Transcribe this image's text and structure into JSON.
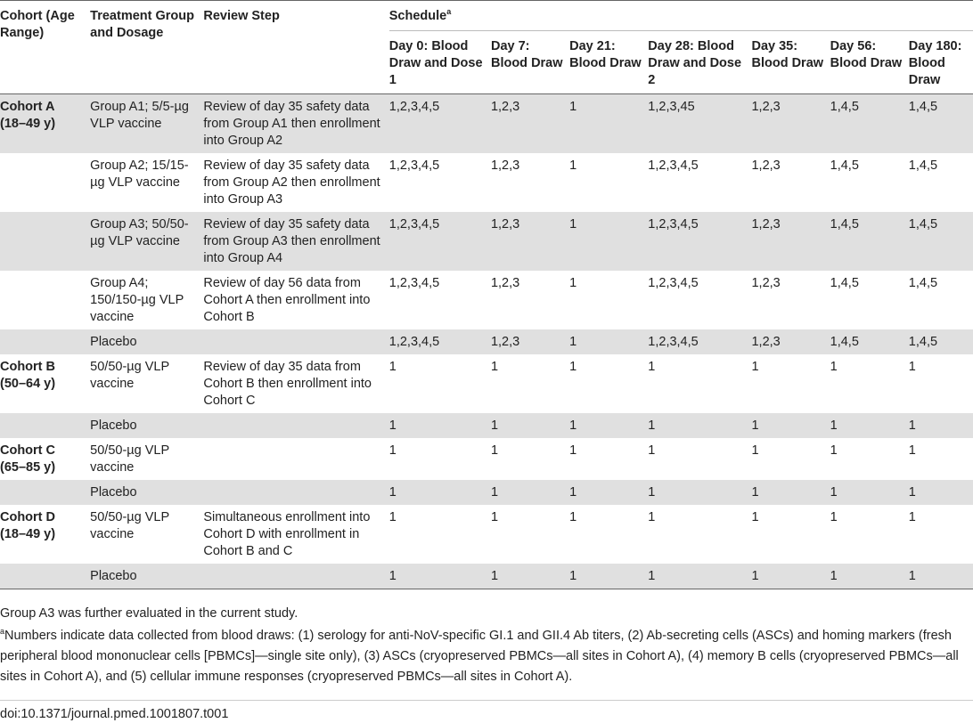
{
  "headers": {
    "cohort": "Cohort (Age Range)",
    "treatment": "Treatment Group and Dosage",
    "review": "Review Step",
    "schedule": "Schedule",
    "schedule_sup": "a",
    "days": [
      "Day 0: Blood Draw and Dose 1",
      "Day 7: Blood Draw",
      "Day 21: Blood Draw",
      "Day 28: Blood Draw and Dose 2",
      "Day 35: Blood Draw",
      "Day 56: Blood Draw",
      "Day 180: Blood Draw"
    ]
  },
  "rows": [
    {
      "cohort": "Cohort A (18–49 y)",
      "treatment": "Group A1; 5/5-µg VLP vaccine",
      "review": "Review of day 35 safety data from Group A1 then enrollment into Group A2",
      "values": [
        "1,2,3,4,5",
        "1,2,3",
        "1",
        "1,2,3,45",
        "1,2,3",
        "1,4,5",
        "1,4,5"
      ],
      "shade": true
    },
    {
      "cohort": "",
      "treatment": "Group A2; 15/15-µg VLP vaccine",
      "review": "Review of day 35 safety data from Group A2 then enrollment into Group A3",
      "values": [
        "1,2,3,4,5",
        "1,2,3",
        "1",
        "1,2,3,4,5",
        "1,2,3",
        "1,4,5",
        "1,4,5"
      ],
      "shade": false
    },
    {
      "cohort": "",
      "treatment": "Group A3; 50/50-µg VLP vaccine",
      "review": "Review of day 35 safety data from Group A3 then enrollment into Group A4",
      "values": [
        "1,2,3,4,5",
        "1,2,3",
        "1",
        "1,2,3,4,5",
        "1,2,3",
        "1,4,5",
        "1,4,5"
      ],
      "shade": true
    },
    {
      "cohort": "",
      "treatment": "Group A4; 150/150-µg VLP vaccine",
      "review": "Review of day 56 data from Cohort A then enrollment into Cohort B",
      "values": [
        "1,2,3,4,5",
        "1,2,3",
        "1",
        "1,2,3,4,5",
        "1,2,3",
        "1,4,5",
        "1,4,5"
      ],
      "shade": false
    },
    {
      "cohort": "",
      "treatment": "Placebo",
      "review": "",
      "values": [
        "1,2,3,4,5",
        "1,2,3",
        "1",
        "1,2,3,4,5",
        "1,2,3",
        "1,4,5",
        "1,4,5"
      ],
      "shade": true
    },
    {
      "cohort": "Cohort B (50–64 y)",
      "treatment": "50/50-µg VLP vaccine",
      "review": "Review of day 35 data from Cohort B then enrollment into Cohort C",
      "values": [
        "1",
        "1",
        "1",
        "1",
        "1",
        "1",
        "1"
      ],
      "shade": false
    },
    {
      "cohort": "",
      "treatment": "Placebo",
      "review": "",
      "values": [
        "1",
        "1",
        "1",
        "1",
        "1",
        "1",
        "1"
      ],
      "shade": true
    },
    {
      "cohort": "Cohort C (65–85 y)",
      "treatment": "50/50-µg VLP vaccine",
      "review": "",
      "values": [
        "1",
        "1",
        "1",
        "1",
        "1",
        "1",
        "1"
      ],
      "shade": false
    },
    {
      "cohort": "",
      "treatment": "Placebo",
      "review": "",
      "values": [
        "1",
        "1",
        "1",
        "1",
        "1",
        "1",
        "1"
      ],
      "shade": true
    },
    {
      "cohort": "Cohort D (18–49 y)",
      "treatment": "50/50-µg VLP vaccine",
      "review": "Simultaneous enrollment into Cohort D with enrollment in Cohort B and C",
      "values": [
        "1",
        "1",
        "1",
        "1",
        "1",
        "1",
        "1"
      ],
      "shade": false
    },
    {
      "cohort": "",
      "treatment": "Placebo",
      "review": "",
      "values": [
        "1",
        "1",
        "1",
        "1",
        "1",
        "1",
        "1"
      ],
      "shade": true
    }
  ],
  "note": "Group A3 was further evaluated in the current study.",
  "footnote_sup": "a",
  "footnote": "Numbers indicate data collected from blood draws: (1) serology for anti-NoV-specific GI.1 and GII.4 Ab titers, (2) Ab-secreting cells (ASCs) and homing markers (fresh peripheral blood mononuclear cells [PBMCs]—single site only), (3) ASCs (cryopreserved PBMCs—all sites in Cohort A), (4) memory B cells (cryopreserved PBMCs—all sites in Cohort A), and (5) cellular immune responses (cryopreserved PBMCs—all sites in Cohort A).",
  "doi": "doi:10.1371/journal.pmed.1001807.t001"
}
